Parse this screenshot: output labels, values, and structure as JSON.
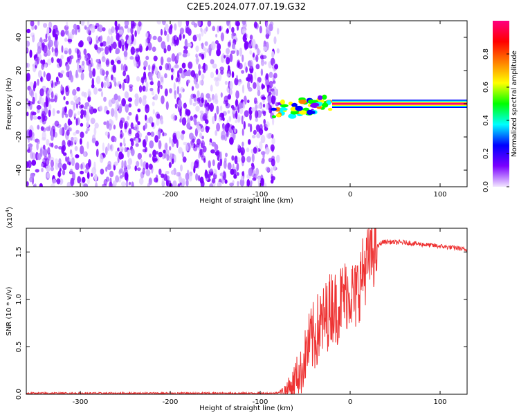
{
  "figure": {
    "title": "C2E5.2024.077.07.19.G32"
  },
  "chart_data": [
    {
      "type": "heatmap",
      "panel": "spectrogram",
      "xlabel": "Height of straight line (km)",
      "ylabel": "Frequency (Hz)",
      "xlim": [
        -360,
        130
      ],
      "ylim": [
        -50,
        50
      ],
      "xticks": [
        -300,
        -200,
        -100,
        0,
        100
      ],
      "yticks": [
        -40,
        -20,
        0,
        20,
        40
      ],
      "description_regions": [
        {
          "x_range": [
            -360,
            -80
          ],
          "frequency_range": [
            -50,
            50
          ],
          "amplitude": 0.05,
          "pattern": "diffuse noise speckle"
        },
        {
          "x_range": [
            -85,
            -20
          ],
          "frequency_center": -4,
          "amplitude": 0.45,
          "pattern": "scattered signal"
        },
        {
          "x_range": [
            -20,
            130
          ],
          "frequency_center": 0,
          "amplitude": 0.95,
          "pattern": "steady carrier line"
        }
      ],
      "colorbar": {
        "label": "Normalized spectral amplitude",
        "range": [
          0.0,
          1.0
        ],
        "ticks": [
          0.0,
          0.2,
          0.4,
          0.6,
          0.8
        ],
        "colors": [
          "#f2e6ff",
          "#7a00ff",
          "#0000ff",
          "#00ffff",
          "#00ff00",
          "#ffff00",
          "#ff8000",
          "#ff0000",
          "#ff0080"
        ]
      }
    },
    {
      "type": "line",
      "panel": "snr",
      "xlabel": "Height of straight line (km)",
      "ylabel": "SNR (10 * v/v)",
      "scale_label": "(x10",
      "scale_exponent": "4",
      "xlim": [
        -360,
        130
      ],
      "ylim": [
        0,
        1.75
      ],
      "xticks": [
        -300,
        -200,
        -100,
        0,
        100
      ],
      "yticks": [
        0.0,
        0.5,
        1.0,
        1.5
      ],
      "series": [
        {
          "color": "#ee3333",
          "x": [
            -360,
            -300,
            -250,
            -200,
            -150,
            -100,
            -85,
            -75,
            -65,
            -60,
            -55,
            -50,
            -45,
            -40,
            -35,
            -30,
            -25,
            -20,
            -15,
            -10,
            -5,
            0,
            5,
            10,
            15,
            20,
            25,
            30,
            35,
            40,
            50,
            60,
            70,
            80,
            90,
            100,
            110,
            120,
            130
          ],
          "y": [
            0.01,
            0.01,
            0.01,
            0.01,
            0.01,
            0.01,
            0.01,
            0.03,
            0.08,
            0.2,
            0.22,
            0.4,
            0.55,
            0.6,
            0.7,
            0.75,
            0.85,
            0.95,
            0.9,
            1.0,
            1.05,
            1.1,
            1.0,
            1.15,
            1.3,
            1.4,
            1.5,
            1.55,
            1.6,
            1.61,
            1.6,
            1.6,
            1.59,
            1.58,
            1.57,
            1.56,
            1.55,
            1.54,
            1.52
          ]
        }
      ]
    }
  ]
}
